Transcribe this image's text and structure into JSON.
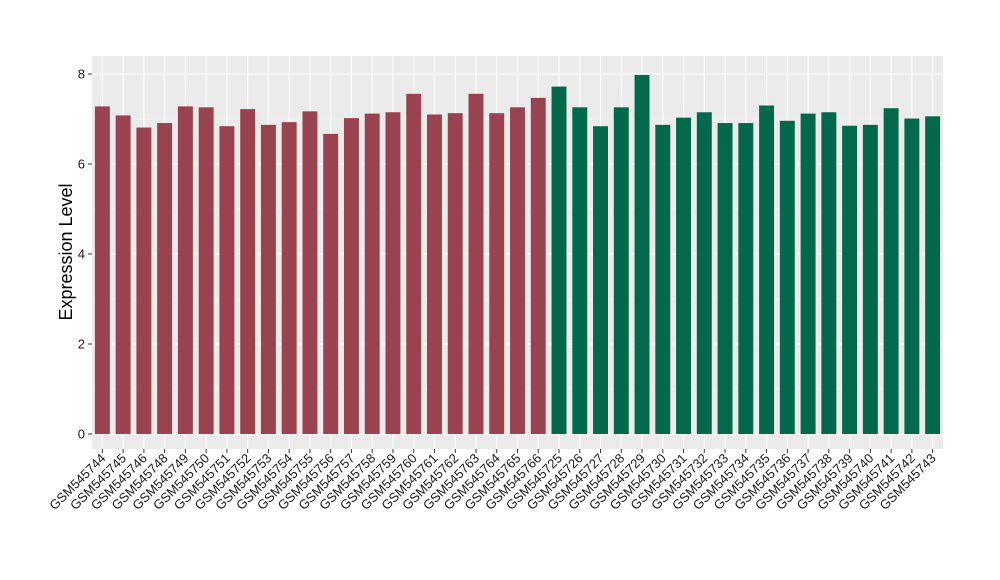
{
  "chart_data": {
    "type": "bar",
    "title": "",
    "xlabel": "",
    "ylabel": "Expression Level",
    "ylim": [
      0,
      8.4
    ],
    "yticks": [
      0,
      2,
      4,
      6,
      8
    ],
    "grid": true,
    "legend": "none",
    "background": "#ebebeb",
    "gridline_color": "#ffffff",
    "series": [
      {
        "color": "#9a4350",
        "categories": [
          "GSM545744",
          "GSM545745",
          "GSM545746",
          "GSM545748",
          "GSM545749",
          "GSM545750",
          "GSM545751",
          "GSM545752",
          "GSM545753",
          "GSM545754",
          "GSM545755",
          "GSM545756",
          "GSM545757",
          "GSM545758",
          "GSM545759",
          "GSM545760",
          "GSM545761",
          "GSM545762",
          "GSM545763",
          "GSM545764",
          "GSM545765",
          "GSM545766"
        ],
        "values": [
          7.28,
          7.08,
          6.81,
          6.91,
          7.28,
          7.26,
          6.84,
          7.22,
          6.87,
          6.93,
          7.17,
          6.67,
          7.02,
          7.12,
          7.15,
          7.56,
          7.1,
          7.13,
          7.56,
          7.13,
          7.26,
          7.47
        ]
      },
      {
        "color": "#03694a",
        "categories": [
          "GSM545725",
          "GSM545726",
          "GSM545727",
          "GSM545728",
          "GSM545729",
          "GSM545730",
          "GSM545731",
          "GSM545732",
          "GSM545733",
          "GSM545734",
          "GSM545735",
          "GSM545736",
          "GSM545737",
          "GSM545738",
          "GSM545739",
          "GSM545740",
          "GSM545741",
          "GSM545742",
          "GSM545743"
        ],
        "values": [
          7.72,
          7.26,
          6.84,
          7.26,
          7.98,
          6.87,
          7.03,
          7.15,
          6.91,
          6.91,
          7.3,
          6.96,
          7.12,
          7.15,
          6.85,
          6.87,
          7.24,
          7.01,
          7.06
        ]
      }
    ]
  }
}
